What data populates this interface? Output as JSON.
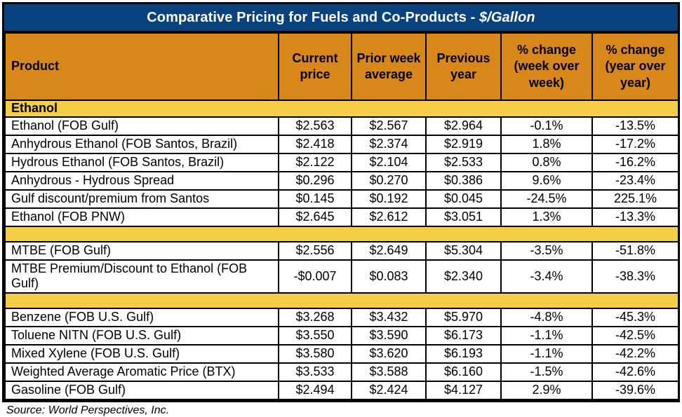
{
  "chart_data": {
    "type": "table",
    "title": "Comparative Pricing for Fuels and Co-Products - $/Gallon",
    "title_main": "Comparative Pricing for Fuels and Co-Products - ",
    "title_unit": "$/Gallon",
    "columns": [
      "Product",
      "Current price",
      "Prior week average",
      "Previous year",
      "% change (week over week)",
      "% change (year over year)"
    ],
    "sections": [
      {
        "label": "Ethanol",
        "rows": [
          {
            "product": "Ethanol (FOB Gulf)",
            "values": [
              "$2.563",
              "$2.567",
              "$2.964",
              "-0.1%",
              "-13.5%"
            ]
          },
          {
            "product": "Anhydrous Ethanol (FOB Santos, Brazil)",
            "values": [
              "$2.418",
              "$2.374",
              "$2.919",
              "1.8%",
              "-17.2%"
            ]
          },
          {
            "product": "Hydrous Ethanol (FOB Santos, Brazil)",
            "values": [
              "$2.122",
              "$2.104",
              "$2.533",
              "0.8%",
              "-16.2%"
            ]
          },
          {
            "product": "Anhydrous - Hydrous Spread",
            "values": [
              "$0.296",
              "$0.270",
              "$0.386",
              "9.6%",
              "-23.4%"
            ]
          },
          {
            "product": "Gulf discount/premium from Santos",
            "values": [
              "$0.145",
              "$0.192",
              "$0.045",
              "-24.5%",
              "225.1%"
            ]
          },
          {
            "product": "Ethanol (FOB PNW)",
            "values": [
              "$2.645",
              "$2.612",
              "$3.051",
              "1.3%",
              "-13.3%"
            ]
          }
        ]
      },
      {
        "label": "",
        "rows": [
          {
            "product": "MTBE (FOB Gulf)",
            "values": [
              "$2.556",
              "$2.649",
              "$5.304",
              "-3.5%",
              "-51.8%"
            ]
          },
          {
            "product": "MTBE Premium/Discount to Ethanol (FOB Gulf)",
            "values": [
              "-$0.007",
              "$0.083",
              "$2.340",
              "-3.4%",
              "-38.3%"
            ]
          }
        ]
      },
      {
        "label": "",
        "rows": [
          {
            "product": "Benzene (FOB U.S. Gulf)",
            "values": [
              "$3.268",
              "$3.432",
              "$5.970",
              "-4.8%",
              "-45.3%"
            ]
          },
          {
            "product": "Toluene NITN (FOB U.S. Gulf)",
            "values": [
              "$3.550",
              "$3.590",
              "$6.173",
              "-1.1%",
              "-42.5%"
            ]
          },
          {
            "product": "Mixed Xylene (FOB U.S. Gulf)",
            "values": [
              "$3.580",
              "$3.620",
              "$6.193",
              "-1.1%",
              "-42.2%"
            ]
          },
          {
            "product": "Weighted Average Aromatic Price (BTX)",
            "values": [
              "$3.533",
              "$3.588",
              "$6.160",
              "-1.5%",
              "-42.6%"
            ]
          },
          {
            "product": "Gasoline (FOB Gulf)",
            "values": [
              "$2.494",
              "$2.424",
              "$4.127",
              "2.9%",
              "-39.6%"
            ]
          }
        ]
      }
    ],
    "source": "Source: World Perspectives, Inc.",
    "colors": {
      "title_bg": "#0A4280",
      "title_text": "#FFFFFF",
      "header_bg": "#D8871A",
      "section_bg": "#F5CE45",
      "row_bg": "#FFFFFF",
      "border": "#000000",
      "text": "#000000"
    },
    "layout_hints": {
      "grid": "off",
      "legend": "none",
      "title_position": "top-center"
    }
  }
}
